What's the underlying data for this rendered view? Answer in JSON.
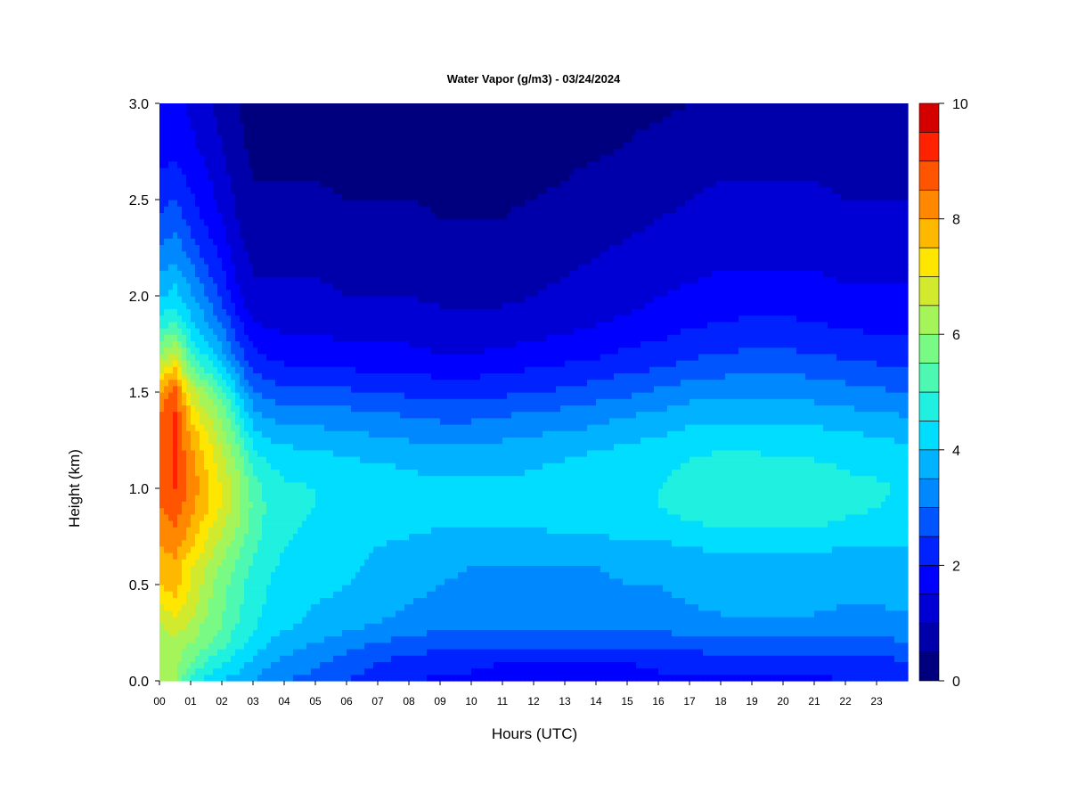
{
  "chart_data": {
    "type": "heatmap",
    "title": "Water Vapor (g/m3) - 03/24/2024",
    "xlabel": "Hours (UTC)",
    "ylabel": "Height (km)",
    "x_ticks": [
      "00",
      "01",
      "02",
      "03",
      "04",
      "05",
      "06",
      "07",
      "08",
      "09",
      "10",
      "11",
      "12",
      "13",
      "14",
      "15",
      "16",
      "17",
      "18",
      "19",
      "20",
      "21",
      "22",
      "23"
    ],
    "y_ticks": [
      "0.0",
      "0.5",
      "1.0",
      "1.5",
      "2.0",
      "2.5",
      "3.0"
    ],
    "xlim": [
      0,
      24
    ],
    "ylim": [
      0,
      3.0
    ],
    "colorbar": {
      "ticks": [
        "0",
        "2",
        "4",
        "6",
        "8",
        "10"
      ],
      "range": [
        0,
        10
      ],
      "levels": 20,
      "colors": [
        "#00007f",
        "#0000aa",
        "#0000d4",
        "#0000ff",
        "#0022ff",
        "#0055ff",
        "#0088ff",
        "#00b2ff",
        "#00ddff",
        "#1ff0e0",
        "#4cf8b2",
        "#78fa85",
        "#a5f45a",
        "#d2ea2e",
        "#ffe600",
        "#ffb800",
        "#ff8800",
        "#ff5500",
        "#ff2200",
        "#d40000",
        "#7f0000"
      ]
    },
    "hours": [
      0,
      0.5,
      1,
      1.5,
      2,
      2.5,
      3,
      3.5,
      4,
      5,
      6,
      7,
      8,
      9,
      10,
      11,
      12,
      13,
      14,
      15,
      16,
      17,
      18,
      19,
      20,
      21,
      22,
      23,
      24
    ],
    "heights_km": [
      0,
      0.1,
      0.2,
      0.3,
      0.4,
      0.5,
      0.6,
      0.7,
      0.8,
      0.9,
      1.0,
      1.1,
      1.2,
      1.3,
      1.4,
      1.5,
      1.6,
      1.7,
      1.8,
      1.9,
      2.0,
      2.2,
      2.4,
      2.6,
      2.8,
      3.0
    ],
    "values": [
      [
        6.0,
        6.0,
        6.0,
        6.5,
        7.0,
        7.5,
        7.5,
        8.0,
        8.0,
        8.5,
        8.5,
        8.5,
        8.5,
        8.5,
        8.5,
        8.0,
        7.0,
        6.0,
        5.2,
        4.5,
        3.9,
        3.2,
        2.6,
        2.1,
        1.8,
        1.6
      ],
      [
        6.0,
        6.2,
        6.4,
        6.8,
        7.3,
        7.7,
        7.8,
        8.2,
        8.5,
        8.8,
        9.0,
        9.0,
        9.0,
        9.0,
        9.0,
        8.8,
        7.8,
        6.6,
        5.6,
        4.8,
        4.2,
        3.4,
        2.8,
        2.2,
        1.8,
        1.6
      ],
      [
        5.0,
        5.5,
        6.0,
        6.4,
        6.8,
        7.0,
        7.1,
        7.6,
        7.9,
        8.2,
        8.4,
        8.3,
        8.1,
        7.8,
        7.4,
        6.8,
        5.8,
        5.0,
        4.5,
        4.0,
        3.6,
        2.9,
        2.3,
        1.9,
        1.6,
        1.4
      ],
      [
        4.3,
        5.0,
        5.6,
        5.9,
        6.1,
        6.3,
        6.5,
        6.9,
        7.2,
        7.6,
        7.6,
        7.5,
        7.3,
        7.0,
        6.5,
        6.0,
        5.1,
        4.4,
        3.8,
        3.4,
        3.0,
        2.4,
        1.9,
        1.6,
        1.3,
        1.1
      ],
      [
        4.0,
        4.6,
        5.2,
        5.5,
        5.6,
        5.7,
        5.9,
        6.3,
        6.6,
        6.9,
        7.0,
        6.8,
        6.5,
        6.2,
        5.8,
        5.2,
        4.3,
        3.6,
        3.2,
        2.8,
        2.4,
        1.9,
        1.5,
        1.2,
        1.0,
        0.8
      ],
      [
        3.8,
        4.2,
        4.7,
        5.0,
        5.1,
        5.2,
        5.4,
        5.7,
        6.0,
        6.2,
        6.2,
        6.0,
        5.6,
        5.2,
        4.7,
        4.1,
        3.4,
        2.8,
        2.4,
        2.0,
        1.6,
        1.2,
        1.0,
        0.8,
        0.6,
        0.5
      ],
      [
        3.5,
        3.9,
        4.3,
        4.6,
        4.7,
        4.8,
        4.9,
        5.1,
        5.3,
        5.4,
        5.3,
        5.0,
        4.6,
        4.1,
        3.6,
        3.1,
        2.5,
        2.1,
        1.7,
        1.4,
        1.1,
        0.9,
        0.7,
        0.5,
        0.4,
        0.3
      ],
      [
        3.2,
        3.6,
        4.0,
        4.3,
        4.4,
        4.5,
        4.6,
        4.7,
        4.8,
        4.9,
        4.8,
        4.6,
        4.2,
        3.8,
        3.3,
        2.8,
        2.3,
        1.9,
        1.6,
        1.3,
        1.1,
        0.9,
        0.7,
        0.5,
        0.4,
        0.3
      ],
      [
        3.0,
        3.4,
        3.8,
        4.1,
        4.2,
        4.3,
        4.4,
        4.5,
        4.6,
        4.7,
        4.6,
        4.4,
        4.1,
        3.7,
        3.2,
        2.7,
        2.2,
        1.8,
        1.5,
        1.3,
        1.1,
        0.9,
        0.7,
        0.5,
        0.3,
        0.3
      ],
      [
        2.8,
        3.1,
        3.5,
        3.9,
        4.0,
        4.1,
        4.2,
        4.3,
        4.4,
        4.5,
        4.5,
        4.3,
        4.0,
        3.6,
        3.2,
        2.7,
        2.2,
        1.8,
        1.5,
        1.3,
        1.1,
        0.9,
        0.7,
        0.5,
        0.3,
        0.2
      ],
      [
        2.5,
        2.8,
        3.2,
        3.7,
        3.9,
        4.0,
        4.1,
        4.2,
        4.3,
        4.4,
        4.4,
        4.2,
        3.9,
        3.5,
        3.1,
        2.6,
        2.1,
        1.7,
        1.4,
        1.2,
        1.0,
        0.8,
        0.6,
        0.4,
        0.3,
        0.2
      ],
      [
        2.2,
        2.5,
        3.0,
        3.5,
        3.7,
        3.8,
        3.9,
        4.0,
        4.2,
        4.3,
        4.3,
        4.1,
        3.8,
        3.4,
        3.0,
        2.5,
        2.0,
        1.6,
        1.4,
        1.2,
        1.0,
        0.8,
        0.6,
        0.4,
        0.3,
        0.2
      ],
      [
        2.0,
        2.3,
        2.8,
        3.3,
        3.5,
        3.6,
        3.7,
        3.9,
        4.1,
        4.2,
        4.2,
        4.0,
        3.7,
        3.3,
        2.9,
        2.4,
        2.0,
        1.6,
        1.4,
        1.2,
        1.0,
        0.8,
        0.6,
        0.4,
        0.3,
        0.2
      ],
      [
        1.9,
        2.2,
        2.7,
        3.2,
        3.4,
        3.5,
        3.6,
        3.8,
        4.0,
        4.1,
        4.1,
        3.9,
        3.6,
        3.2,
        2.8,
        2.3,
        1.9,
        1.5,
        1.3,
        1.1,
        0.9,
        0.7,
        0.5,
        0.4,
        0.3,
        0.2
      ],
      [
        1.9,
        2.1,
        2.6,
        3.1,
        3.3,
        3.4,
        3.5,
        3.8,
        4.0,
        4.1,
        4.1,
        3.9,
        3.6,
        3.2,
        2.8,
        2.3,
        1.9,
        1.5,
        1.3,
        1.1,
        0.9,
        0.7,
        0.5,
        0.4,
        0.3,
        0.2
      ],
      [
        1.8,
        2.0,
        2.6,
        3.1,
        3.3,
        3.4,
        3.5,
        3.8,
        4.0,
        4.1,
        4.1,
        3.9,
        3.7,
        3.3,
        2.9,
        2.4,
        2.0,
        1.6,
        1.3,
        1.1,
        0.9,
        0.7,
        0.5,
        0.4,
        0.3,
        0.2
      ],
      [
        1.8,
        2.0,
        2.6,
        3.1,
        3.3,
        3.4,
        3.5,
        3.8,
        4.0,
        4.2,
        4.2,
        4.0,
        3.8,
        3.4,
        3.0,
        2.5,
        2.1,
        1.7,
        1.4,
        1.2,
        1.0,
        0.8,
        0.6,
        0.4,
        0.3,
        0.3
      ],
      [
        1.8,
        2.0,
        2.6,
        3.1,
        3.3,
        3.4,
        3.5,
        3.8,
        4.1,
        4.2,
        4.2,
        4.1,
        3.9,
        3.5,
        3.1,
        2.6,
        2.2,
        1.8,
        1.5,
        1.3,
        1.1,
        0.9,
        0.7,
        0.5,
        0.4,
        0.3
      ],
      [
        1.8,
        2.0,
        2.6,
        3.1,
        3.3,
        3.4,
        3.5,
        3.8,
        4.1,
        4.3,
        4.3,
        4.2,
        4.0,
        3.6,
        3.2,
        2.8,
        2.3,
        1.9,
        1.6,
        1.4,
        1.2,
        1.0,
        0.8,
        0.6,
        0.4,
        0.3
      ],
      [
        1.8,
        2.0,
        2.7,
        3.2,
        3.4,
        3.5,
        3.6,
        3.9,
        4.2,
        4.4,
        4.4,
        4.3,
        4.1,
        3.8,
        3.4,
        2.9,
        2.5,
        2.1,
        1.8,
        1.5,
        1.3,
        1.1,
        0.9,
        0.7,
        0.5,
        0.4
      ],
      [
        1.9,
        2.1,
        2.7,
        3.2,
        3.4,
        3.5,
        3.6,
        3.9,
        4.2,
        4.5,
        4.5,
        4.4,
        4.2,
        3.9,
        3.5,
        3.1,
        2.6,
        2.2,
        1.9,
        1.7,
        1.5,
        1.2,
        1.0,
        0.8,
        0.6,
        0.4
      ],
      [
        1.9,
        2.1,
        2.8,
        3.3,
        3.5,
        3.6,
        3.7,
        4.0,
        4.4,
        4.7,
        4.7,
        4.6,
        4.4,
        4.1,
        3.7,
        3.3,
        2.8,
        2.4,
        2.1,
        1.8,
        1.6,
        1.3,
        1.1,
        0.9,
        0.7,
        0.5
      ],
      [
        1.9,
        2.2,
        2.9,
        3.4,
        3.6,
        3.7,
        3.8,
        4.1,
        4.5,
        4.8,
        4.8,
        4.7,
        4.5,
        4.2,
        3.8,
        3.4,
        2.9,
        2.5,
        2.2,
        1.9,
        1.7,
        1.4,
        1.2,
        1.0,
        0.8,
        0.6
      ],
      [
        1.9,
        2.2,
        2.9,
        3.4,
        3.6,
        3.7,
        3.8,
        4.1,
        4.5,
        4.8,
        4.8,
        4.7,
        4.5,
        4.2,
        3.8,
        3.4,
        3.0,
        2.6,
        2.2,
        2.0,
        1.7,
        1.4,
        1.2,
        1.0,
        0.8,
        0.6
      ],
      [
        1.9,
        2.2,
        2.9,
        3.4,
        3.6,
        3.7,
        3.8,
        4.1,
        4.5,
        4.7,
        4.7,
        4.6,
        4.4,
        4.1,
        3.8,
        3.4,
        3.0,
        2.6,
        2.2,
        2.0,
        1.7,
        1.4,
        1.2,
        1.0,
        0.8,
        0.6
      ],
      [
        1.9,
        2.2,
        2.9,
        3.4,
        3.6,
        3.7,
        3.8,
        4.1,
        4.5,
        4.8,
        4.8,
        4.6,
        4.4,
        4.1,
        3.7,
        3.3,
        2.9,
        2.5,
        2.2,
        1.9,
        1.7,
        1.4,
        1.2,
        1.0,
        0.8,
        0.6
      ],
      [
        2.0,
        2.2,
        2.8,
        3.3,
        3.5,
        3.6,
        3.7,
        4.0,
        4.4,
        4.6,
        4.6,
        4.5,
        4.3,
        4.0,
        3.6,
        3.2,
        2.8,
        2.4,
        2.1,
        1.8,
        1.6,
        1.3,
        1.1,
        0.9,
        0.7,
        0.6
      ],
      [
        2.0,
        2.3,
        2.8,
        3.3,
        3.5,
        3.6,
        3.7,
        4.0,
        4.3,
        4.5,
        4.6,
        4.4,
        4.2,
        3.9,
        3.5,
        3.1,
        2.7,
        2.3,
        2.0,
        1.8,
        1.6,
        1.3,
        1.1,
        0.9,
        0.7,
        0.6
      ],
      [
        2.2,
        2.5,
        3.0,
        3.4,
        3.6,
        3.7,
        3.8,
        4.0,
        4.3,
        4.4,
        4.4,
        4.3,
        4.1,
        3.8,
        3.4,
        3.0,
        2.6,
        2.3,
        2.0,
        1.8,
        1.6,
        1.3,
        1.1,
        0.9,
        0.7,
        0.6
      ]
    ]
  }
}
